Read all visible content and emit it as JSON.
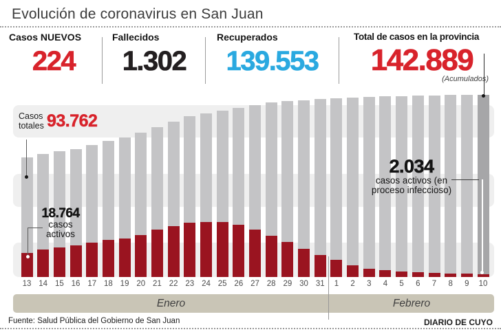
{
  "title": "Evolución de coronavirus en San Juan",
  "stats": [
    {
      "label": "Casos NUEVOS",
      "value": "224",
      "color": "#d8232b"
    },
    {
      "label": "Fallecidos",
      "value": "1.302",
      "color": "#231f20"
    },
    {
      "label": "Recuperados",
      "value": "139.553",
      "color": "#2aa9e0"
    },
    {
      "label": "Total de casos en la provincia",
      "value": "142.889",
      "note": "(Acumulados)",
      "color": "#d8232b"
    }
  ],
  "annotations": {
    "totales": {
      "line1": "Casos",
      "line2": "totales",
      "value": "93.762"
    },
    "activos_inicio": {
      "value": "18.764",
      "line1": "casos",
      "line2": "activos"
    },
    "activos_fin": {
      "value": "2.034",
      "line1": "casos activos (en",
      "line2": "proceso infeccioso)"
    }
  },
  "months": [
    {
      "label": "Enero"
    },
    {
      "label": "Febrero"
    }
  ],
  "footer": {
    "source": "Fuente: Salud Pública del Gobierno de San Juan",
    "credit": "DIARIO DE CUYO"
  },
  "chart_data": {
    "type": "bar",
    "title": "Evolución de coronavirus en San Juan",
    "x_labels": [
      "13",
      "14",
      "15",
      "16",
      "17",
      "18",
      "19",
      "20",
      "21",
      "22",
      "23",
      "24",
      "25",
      "26",
      "27",
      "28",
      "29",
      "30",
      "31",
      "1",
      "2",
      "3",
      "4",
      "5",
      "6",
      "7",
      "8",
      "9",
      "10"
    ],
    "months": [
      {
        "label": "Enero",
        "span_days": 19
      },
      {
        "label": "Febrero",
        "span_days": 10
      }
    ],
    "ylim": [
      0,
      145000
    ],
    "grid": "horizontal-stripes",
    "series": [
      {
        "name": "Casos totales (acumulados)",
        "color": "#c4c4c6",
        "values": [
          93762,
          96400,
          98500,
          100200,
          103400,
          106600,
          109300,
          113100,
          117400,
          121700,
          126000,
          128200,
          130300,
          132500,
          134600,
          136800,
          137800,
          138400,
          139500,
          140000,
          140500,
          141100,
          141600,
          141600,
          142200,
          142400,
          142700,
          142700,
          142889
        ]
      },
      {
        "name": "Casos activos (en proceso infeccioso)",
        "color": "#9a1420",
        "values": [
          18764,
          21500,
          23200,
          24800,
          26900,
          29100,
          30200,
          32800,
          37200,
          39800,
          42500,
          43100,
          43100,
          40900,
          37200,
          32300,
          27500,
          22100,
          17200,
          13500,
          9200,
          6500,
          5400,
          4300,
          3800,
          3200,
          2700,
          2700,
          2034
        ]
      }
    ],
    "last_bar_color": "#a6a6a8",
    "labeled_points": [
      {
        "series": "Casos totales (acumulados)",
        "x": "13 Enero",
        "value": 93762,
        "display": "93.762"
      },
      {
        "series": "Casos activos (en proceso infeccioso)",
        "x": "13 Enero",
        "value": 18764,
        "display": "18.764"
      },
      {
        "series": "Casos activos (en proceso infeccioso)",
        "x": "10 Febrero",
        "value": 2034,
        "display": "2.034"
      },
      {
        "series": "Casos totales (acumulados)",
        "x": "10 Febrero",
        "value": 142889,
        "display": "142.889"
      }
    ]
  },
  "colors": {
    "accent_red": "#d8232b",
    "blue": "#2aa9e0",
    "bar_gray": "#c4c4c6",
    "bar_gray_dark": "#a6a6a8",
    "bar_red": "#9a1420",
    "stripe": "#efefef",
    "month_band": "#c9c5b6"
  }
}
